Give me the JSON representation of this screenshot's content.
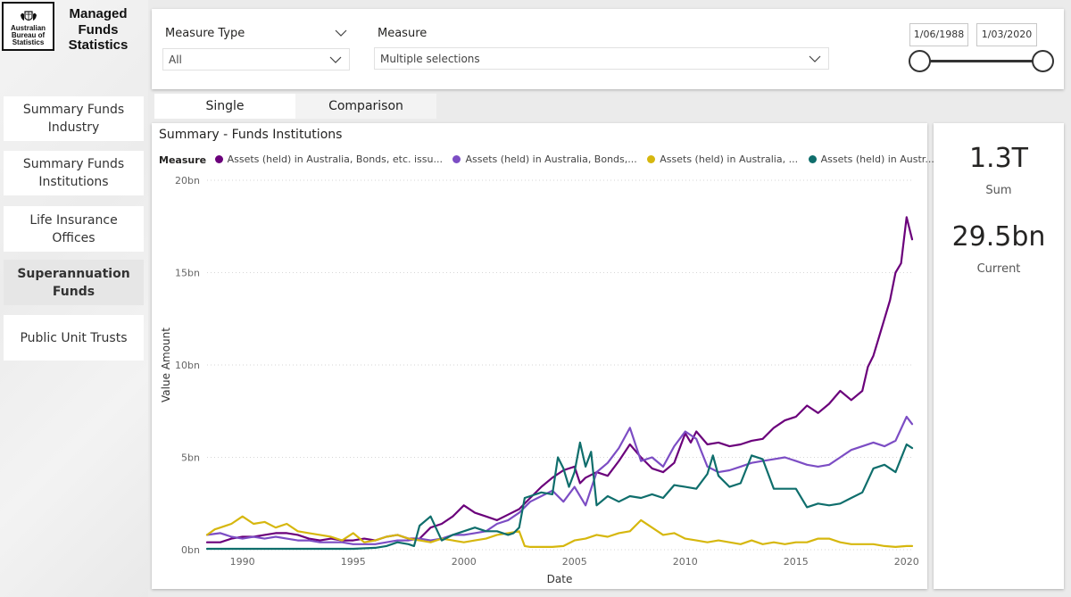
{
  "sidebar": {
    "logo_lines": [
      "Australian",
      "Bureau of",
      "Statistics"
    ],
    "app_title": "Managed Funds Statistics",
    "nav": [
      {
        "label": "Summary Funds Industry",
        "active": false
      },
      {
        "label": "Summary Funds Institutions",
        "active": false
      },
      {
        "label": "Life Insurance Offices",
        "active": false
      },
      {
        "label": "Superannuation Funds",
        "active": true
      },
      {
        "label": "Public Unit Trusts",
        "active": false
      }
    ]
  },
  "filters": {
    "measure_type": {
      "label": "Measure Type",
      "value": "All"
    },
    "measure": {
      "label": "Measure",
      "value": "Multiple selections"
    },
    "date_range": {
      "start": "1/06/1988",
      "end": "1/03/2020"
    }
  },
  "tabs": [
    {
      "label": "Single",
      "selected": true
    },
    {
      "label": "Comparison",
      "selected": false
    }
  ],
  "chart": {
    "title": "Summary - Funds Institutions",
    "legend_title": "Measure",
    "legend_labels": [
      "Assets (held) in Australia, Bonds, etc. issu...",
      "Assets (held) in Australia, Bonds,...",
      "Assets (held) in Australia, ...",
      "Assets (held) in Austr..."
    ]
  },
  "kpi": {
    "sum_value": "1.3T",
    "sum_label": "Sum",
    "current_value": "29.5bn",
    "current_label": "Current"
  },
  "chart_data": {
    "type": "line",
    "xlabel": "Date",
    "ylabel": "Value Amount",
    "xlim": [
      1988.4,
      2020.25
    ],
    "ylim": [
      0,
      20
    ],
    "x_ticks": [
      1990,
      1995,
      2000,
      2005,
      2010,
      2015,
      2020
    ],
    "x_tick_labels": [
      "1990",
      "1995",
      "2000",
      "2005",
      "2010",
      "2015",
      "2020"
    ],
    "y_ticks": [
      0,
      5,
      10,
      15,
      20
    ],
    "y_tick_labels": [
      "0bn",
      "5bn",
      "10bn",
      "15bn",
      "20bn"
    ],
    "grid": "horizontal dotted",
    "legend_position": "top",
    "series": [
      {
        "color": "#6b007b",
        "x": [
          1988.4,
          1989,
          1989.5,
          1990,
          1990.5,
          1991,
          1991.5,
          1992,
          1992.5,
          1993,
          1993.5,
          1994,
          1994.5,
          1995,
          1995.5,
          1996,
          1996.5,
          1997,
          1997.5,
          1998,
          1998.5,
          1999,
          1999.5,
          2000,
          2000.5,
          2001,
          2001.5,
          2002,
          2002.5,
          2003,
          2003.5,
          2004,
          2004.5,
          2005,
          2005.25,
          2005.5,
          2006,
          2006.5,
          2007,
          2007.5,
          2008,
          2008.5,
          2009,
          2009.5,
          2010,
          2010.25,
          2010.5,
          2011,
          2011.5,
          2012,
          2012.5,
          2013,
          2013.5,
          2014,
          2014.5,
          2015,
          2015.5,
          2016,
          2016.5,
          2017,
          2017.5,
          2018,
          2018.25,
          2018.5,
          2018.75,
          2019,
          2019.25,
          2019.5,
          2019.75,
          2020,
          2020.25
        ],
        "values": [
          0.4,
          0.4,
          0.6,
          0.7,
          0.7,
          0.8,
          0.9,
          0.9,
          0.8,
          0.6,
          0.5,
          0.6,
          0.5,
          0.5,
          0.6,
          0.5,
          0.7,
          0.8,
          0.6,
          0.6,
          1.2,
          1.4,
          1.8,
          2.4,
          2.0,
          1.8,
          1.6,
          1.9,
          2.2,
          2.8,
          3.4,
          3.9,
          4.3,
          4.5,
          3.6,
          3.9,
          4.2,
          4.0,
          4.8,
          5.7,
          5.0,
          4.4,
          4.2,
          4.7,
          6.3,
          5.8,
          6.4,
          5.7,
          5.8,
          5.6,
          5.7,
          5.9,
          6.0,
          6.6,
          7.0,
          7.2,
          7.8,
          7.4,
          7.9,
          8.6,
          8.1,
          8.6,
          9.9,
          10.5,
          11.5,
          12.5,
          13.5,
          15.0,
          15.5,
          18.0,
          16.8
        ]
      },
      {
        "color": "#7c4dc4",
        "x": [
          1988.4,
          1989,
          1989.5,
          1990,
          1990.5,
          1991,
          1991.5,
          1992,
          1992.5,
          1993,
          1993.5,
          1994,
          1994.5,
          1995,
          1995.5,
          1996,
          1996.5,
          1997,
          1997.5,
          1998,
          1998.5,
          1999,
          1999.5,
          2000,
          2000.5,
          2001,
          2001.5,
          2002,
          2002.5,
          2003,
          2003.5,
          2004,
          2004.5,
          2005,
          2005.5,
          2006,
          2006.5,
          2007,
          2007.5,
          2008,
          2008.5,
          2009,
          2009.5,
          2010,
          2010.5,
          2011,
          2011.5,
          2012,
          2012.5,
          2013,
          2013.5,
          2014,
          2014.5,
          2015,
          2015.5,
          2016,
          2016.5,
          2017,
          2017.5,
          2018,
          2018.5,
          2019,
          2019.5,
          2020,
          2020.25
        ],
        "values": [
          0.8,
          0.9,
          0.7,
          0.6,
          0.7,
          0.6,
          0.7,
          0.6,
          0.5,
          0.5,
          0.4,
          0.4,
          0.4,
          0.3,
          0.3,
          0.3,
          0.4,
          0.5,
          0.5,
          0.6,
          0.5,
          0.6,
          0.8,
          0.8,
          0.9,
          1.0,
          1.4,
          1.6,
          2.0,
          2.6,
          2.9,
          3.2,
          2.6,
          3.4,
          2.4,
          4.2,
          4.7,
          5.5,
          6.6,
          4.8,
          5.0,
          4.5,
          5.6,
          6.4,
          6.0,
          4.5,
          4.2,
          4.3,
          4.5,
          4.7,
          4.8,
          4.9,
          5.0,
          4.8,
          4.6,
          4.5,
          4.6,
          5.0,
          5.4,
          5.6,
          5.8,
          5.6,
          5.9,
          7.2,
          6.8
        ]
      },
      {
        "color": "#d6b70e",
        "x": [
          1988.4,
          1988.75,
          1989,
          1989.5,
          1990,
          1990.5,
          1991,
          1991.5,
          1992,
          1992.5,
          1993,
          1993.5,
          1994,
          1994.5,
          1995,
          1995.5,
          1996,
          1996.5,
          1997,
          1997.5,
          1998,
          1998.5,
          1999,
          1999.5,
          2000,
          2000.5,
          2001,
          2001.5,
          2002,
          2002.5,
          2002.75,
          2003,
          2003.5,
          2004,
          2004.5,
          2005,
          2005.5,
          2006,
          2006.5,
          2007,
          2007.5,
          2008,
          2008.5,
          2009,
          2009.5,
          2010,
          2010.5,
          2011,
          2011.5,
          2012,
          2012.5,
          2013,
          2013.5,
          2014,
          2014.5,
          2015,
          2015.5,
          2016,
          2016.5,
          2017,
          2017.5,
          2018,
          2018.5,
          2019,
          2019.5,
          2020,
          2020.25
        ],
        "values": [
          0.8,
          1.1,
          1.2,
          1.4,
          1.8,
          1.4,
          1.5,
          1.2,
          1.4,
          1.0,
          0.9,
          0.8,
          0.7,
          0.5,
          0.9,
          0.4,
          0.5,
          0.7,
          0.8,
          0.6,
          0.5,
          0.4,
          0.6,
          0.5,
          0.4,
          0.5,
          0.6,
          0.8,
          0.9,
          1.0,
          0.2,
          0.15,
          0.15,
          0.15,
          0.2,
          0.5,
          0.6,
          0.8,
          0.7,
          0.9,
          1.0,
          1.6,
          1.2,
          0.8,
          0.9,
          0.6,
          0.5,
          0.4,
          0.5,
          0.4,
          0.3,
          0.5,
          0.3,
          0.4,
          0.3,
          0.4,
          0.4,
          0.6,
          0.6,
          0.4,
          0.3,
          0.3,
          0.3,
          0.2,
          0.15,
          0.2,
          0.2
        ]
      },
      {
        "color": "#0f6e6c",
        "x": [
          1988.4,
          1989,
          1990,
          1991,
          1992,
          1993,
          1994,
          1995,
          1996,
          1996.5,
          1997,
          1997.5,
          1997.75,
          1998,
          1998.5,
          1999,
          1999.5,
          2000,
          2000.5,
          2001,
          2001.5,
          2002,
          2002.25,
          2002.5,
          2002.75,
          2003,
          2003.5,
          2004,
          2004.25,
          2004.5,
          2004.75,
          2005,
          2005.25,
          2005.5,
          2005.75,
          2006,
          2006.5,
          2007,
          2007.5,
          2008,
          2008.5,
          2009,
          2009.5,
          2010,
          2010.5,
          2011,
          2011.25,
          2011.5,
          2012,
          2012.5,
          2013,
          2013.5,
          2014,
          2014.5,
          2015,
          2015.5,
          2016,
          2016.5,
          2017,
          2017.5,
          2018,
          2018.5,
          2019,
          2019.5,
          2020,
          2020.25
        ],
        "values": [
          0.05,
          0.05,
          0.05,
          0.05,
          0.05,
          0.05,
          0.05,
          0.05,
          0.1,
          0.2,
          0.4,
          0.3,
          0.2,
          1.3,
          1.8,
          0.5,
          0.8,
          1.0,
          1.2,
          1.0,
          1.0,
          0.8,
          0.9,
          1.2,
          2.8,
          2.9,
          3.1,
          3.0,
          5.0,
          4.4,
          3.4,
          4.2,
          5.8,
          4.5,
          5.3,
          2.4,
          2.9,
          2.6,
          2.9,
          2.8,
          3.0,
          2.8,
          3.5,
          3.4,
          3.3,
          4.1,
          5.1,
          4.0,
          3.4,
          3.6,
          5.1,
          4.9,
          3.3,
          3.3,
          3.3,
          2.3,
          2.5,
          2.4,
          2.5,
          2.8,
          3.1,
          4.4,
          4.6,
          4.2,
          5.7,
          5.5
        ]
      }
    ]
  }
}
